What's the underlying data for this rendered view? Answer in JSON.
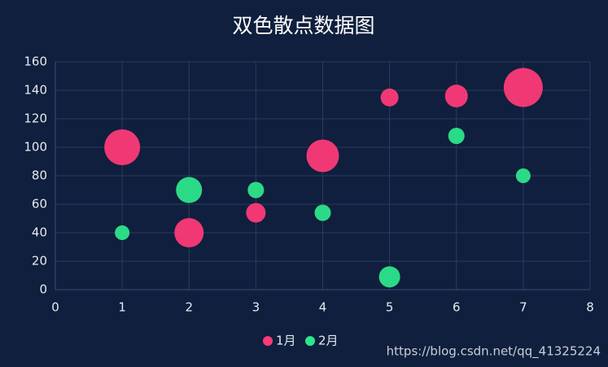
{
  "chart_data": {
    "type": "scatter",
    "title": "双色散点数据图",
    "xlim": [
      0,
      8
    ],
    "xticks": [
      0,
      1,
      2,
      3,
      4,
      5,
      6,
      7,
      8
    ],
    "ylim": [
      0,
      160
    ],
    "yticks": [
      0,
      20,
      40,
      60,
      80,
      100,
      120,
      140,
      160
    ],
    "grid": true,
    "legend": "bottom",
    "series": [
      {
        "name": "1月",
        "color": "#fd3a78",
        "x": [
          1,
          2,
          3,
          4,
          5,
          6,
          7
        ],
        "values": [
          100,
          40,
          54,
          94,
          135,
          136,
          142
        ],
        "sizes": [
          22,
          18,
          12,
          20,
          11,
          14,
          24
        ]
      },
      {
        "name": "2月",
        "color": "#2de58b",
        "x": [
          1,
          2,
          3,
          4,
          5,
          6,
          7
        ],
        "values": [
          40,
          70,
          70,
          54,
          9,
          108,
          80
        ],
        "sizes": [
          9,
          16,
          10,
          10,
          13,
          10,
          9
        ]
      }
    ],
    "watermark": "https://blog.csdn.net/qq_41325224"
  }
}
